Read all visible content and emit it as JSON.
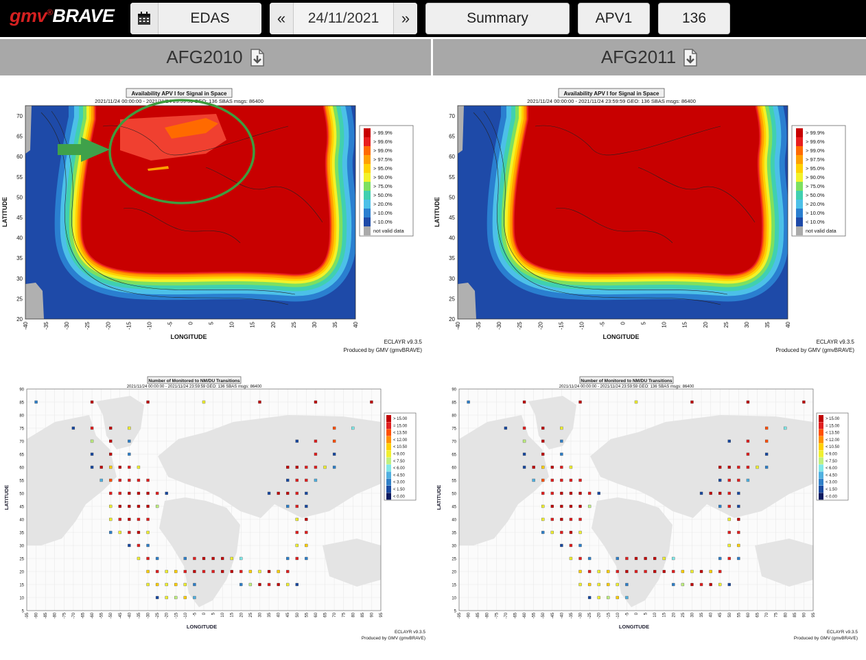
{
  "app": {
    "logo_prefix": "gmv",
    "logo_reg": "®",
    "logo_suffix": "BRAVE"
  },
  "toolbar": {
    "calendar_icon": "calendar-icon",
    "network": "EDAS",
    "prev_label": "«",
    "date": "24/11/2021",
    "next_label": "»",
    "view": "Summary",
    "service": "APV1",
    "prn": "136"
  },
  "stations": [
    {
      "name": "AFG2010",
      "icon": "download-icon"
    },
    {
      "name": "AFG2011",
      "icon": "download-icon"
    }
  ],
  "maps": {
    "availability": {
      "title": "Availability APV I for Signal in Space",
      "subtitle_left": "2021/11/24 00:00:00 - 2021/11/24 23:59:59  GEO: 136  SBAS  msgs: 86400",
      "subtitle_right": "2021/11/24 00:00:00 - 2021/11/24 23:59:59  GEO: 136  SBAS  msgs: 86400",
      "xlabel": "LONGITUDE",
      "ylabel": "LATITUDE",
      "lat_ticks": [
        "70",
        "65",
        "60",
        "55",
        "50",
        "45",
        "40",
        "35",
        "30",
        "25",
        "20"
      ],
      "lon_ticks": [
        "-40",
        "-35",
        "-30",
        "-25",
        "-20",
        "-15",
        "-10",
        "-5",
        "0",
        "5",
        "10",
        "15",
        "20",
        "25",
        "30",
        "35",
        "40"
      ],
      "legend": [
        {
          "label": "> 99.9%",
          "color": "#c80000"
        },
        {
          "label": "> 99.6%",
          "color": "#e81e1e"
        },
        {
          "label": "> 99.0%",
          "color": "#ff6a00"
        },
        {
          "label": "> 97.5%",
          "color": "#ffa000"
        },
        {
          "label": "> 95.0%",
          "color": "#ffd200"
        },
        {
          "label": "> 90.0%",
          "color": "#f2f22a"
        },
        {
          "label": "> 75.0%",
          "color": "#7de060"
        },
        {
          "label": "> 50.0%",
          "color": "#40d0b0"
        },
        {
          "label": "> 20.0%",
          "color": "#4cc0e8"
        },
        {
          "label": "> 10.0%",
          "color": "#2a7fd0"
        },
        {
          "label": "< 10.0%",
          "color": "#1e4aa8"
        },
        {
          "label": "not valid data",
          "color": "#aaaaaa"
        }
      ],
      "version": "ECLAYR v9.3.5",
      "produced": "Produced by GMV (gmvBRAVE)"
    },
    "transitions": {
      "title": "Number of Monitored to NM/DU Transitions",
      "subtitle": "2021/11/24 00:00:00 - 2021/11/24 23:59:59  GEO: 136  SBAS  msgs: 86400",
      "xlabel": "LONGITUDE",
      "ylabel": "LATITUDE",
      "lat_ticks": [
        "90",
        "85",
        "80",
        "75",
        "70",
        "65",
        "60",
        "55",
        "50",
        "45",
        "40",
        "35",
        "30",
        "25",
        "20",
        "15",
        "10",
        "5"
      ],
      "lon_ticks": [
        "-95",
        "-90",
        "-85",
        "-80",
        "-75",
        "-70",
        "-65",
        "-60",
        "-55",
        "-50",
        "-45",
        "-40",
        "-35",
        "-30",
        "-25",
        "-20",
        "-15",
        "-10",
        "-5",
        "0",
        "5",
        "10",
        "15",
        "20",
        "25",
        "30",
        "35",
        "40",
        "45",
        "50",
        "55",
        "60",
        "65",
        "70",
        "75",
        "80",
        "85",
        "90",
        "95"
      ],
      "legend": [
        {
          "label": "> 15.00",
          "color": "#c00000"
        },
        {
          "label": "= 15.00",
          "color": "#e02020"
        },
        {
          "label": "< 13.50",
          "color": "#ff5000"
        },
        {
          "label": "< 12.00",
          "color": "#ff9000"
        },
        {
          "label": "< 10.50",
          "color": "#ffd000"
        },
        {
          "label": "< 9.00",
          "color": "#f0f030"
        },
        {
          "label": "< 7.50",
          "color": "#c0f080"
        },
        {
          "label": "< 6.00",
          "color": "#80e8e8"
        },
        {
          "label": "< 4.50",
          "color": "#50b0e0"
        },
        {
          "label": "< 3.00",
          "color": "#3080c8"
        },
        {
          "label": "< 1.50",
          "color": "#1a4aa0"
        },
        {
          "label": "< 0.00",
          "color": "#0a1a60"
        }
      ],
      "version": "ECLAYR v9.3.5",
      "produced": "Produced by GMV (gmvBRAVE)"
    }
  }
}
